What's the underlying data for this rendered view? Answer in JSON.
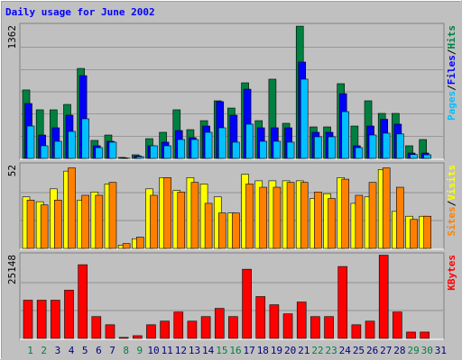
{
  "chart_data": {
    "type": "bar",
    "title": "Daily usage for June 2002",
    "legend_separator": "/",
    "categories": [
      "1",
      "2",
      "3",
      "4",
      "5",
      "6",
      "7",
      "8",
      "9",
      "10",
      "11",
      "12",
      "13",
      "14",
      "15",
      "16",
      "17",
      "18",
      "19",
      "20",
      "21",
      "22",
      "23",
      "24",
      "25",
      "26",
      "27",
      "28",
      "29",
      "30",
      "31"
    ],
    "category_colors": [
      "#008040",
      "#008040",
      "#000080",
      "#000080",
      "#000080",
      "#000080",
      "#000080",
      "#008040",
      "#008040",
      "#000080",
      "#000080",
      "#000080",
      "#000080",
      "#000080",
      "#008040",
      "#008040",
      "#000080",
      "#000080",
      "#000080",
      "#000080",
      "#000080",
      "#008040",
      "#008040",
      "#000080",
      "#000080",
      "#000080",
      "#000080",
      "#000080",
      "#008040",
      "#008040",
      "#000080"
    ],
    "panels": [
      {
        "ylim": [
          0,
          1362
        ],
        "yticks": [
          1362
        ],
        "series": [
          {
            "name": "Hits",
            "color": "#008040",
            "values": [
              700,
              497,
              497,
              552,
              920,
              184,
              239,
              10,
              37,
              202,
              267,
              497,
              294,
              386,
              589,
              515,
              773,
              386,
              810,
              359,
              1352,
              322,
              322,
              764,
              331,
              589,
              460,
              460,
              129,
              193,
              0
            ]
          },
          {
            "name": "Files",
            "color": "#0000ff",
            "values": [
              561,
              239,
              313,
              442,
              846,
              129,
              175,
              5,
              25,
              129,
              166,
              285,
              212,
              331,
              580,
              442,
              708,
              313,
              313,
              313,
              985,
              267,
              267,
              662,
              129,
              331,
              400,
              350,
              55,
              55,
              0
            ]
          },
          {
            "name": "Pages",
            "color": "#00c0ff",
            "values": [
              331,
              129,
              175,
              276,
              405,
              110,
              166,
              2,
              18,
              129,
              129,
              193,
              193,
              267,
              313,
              166,
              350,
              175,
              175,
              166,
              810,
              221,
              221,
              478,
              110,
              239,
              258,
              250,
              40,
              37,
              0
            ]
          }
        ]
      },
      {
        "ylim": [
          0,
          52
        ],
        "yticks": [
          52
        ],
        "series": [
          {
            "name": "Visits",
            "color": "#ffff00",
            "values": [
              32,
              29,
              37,
              48,
              30,
              35,
              40,
              2,
              6,
              37,
              44,
              36,
              44,
              40,
              32,
              22,
              46,
              42,
              42,
              42,
              42,
              31,
              34,
              44,
              28,
              32,
              49,
              23,
              20,
              20,
              0
            ]
          },
          {
            "name": "Sites",
            "color": "#ff8000",
            "values": [
              30,
              27,
              30,
              50,
              33,
              33,
              41,
              3,
              7,
              33,
              44,
              35,
              41,
              28,
              22,
              22,
              40,
              38,
              38,
              41,
              41,
              35,
              31,
              43,
              33,
              41,
              50,
              38,
              18,
              20,
              0
            ]
          }
        ]
      },
      {
        "ylim": [
          0,
          25148
        ],
        "yticks": [
          25148
        ],
        "series": [
          {
            "name": "KBytes",
            "color": "#ff0000",
            "values": [
              11480,
              11480,
              11480,
              14490,
              22140,
              6560,
              4100,
              300,
              820,
              4100,
              5190,
              7930,
              5190,
              6560,
              9020,
              6560,
              20780,
              12570,
              10110,
              7380,
              10930,
              6560,
              6560,
              21600,
              4100,
              5190,
              25000,
              7930,
              1910,
              1910,
              0
            ]
          }
        ]
      }
    ]
  }
}
